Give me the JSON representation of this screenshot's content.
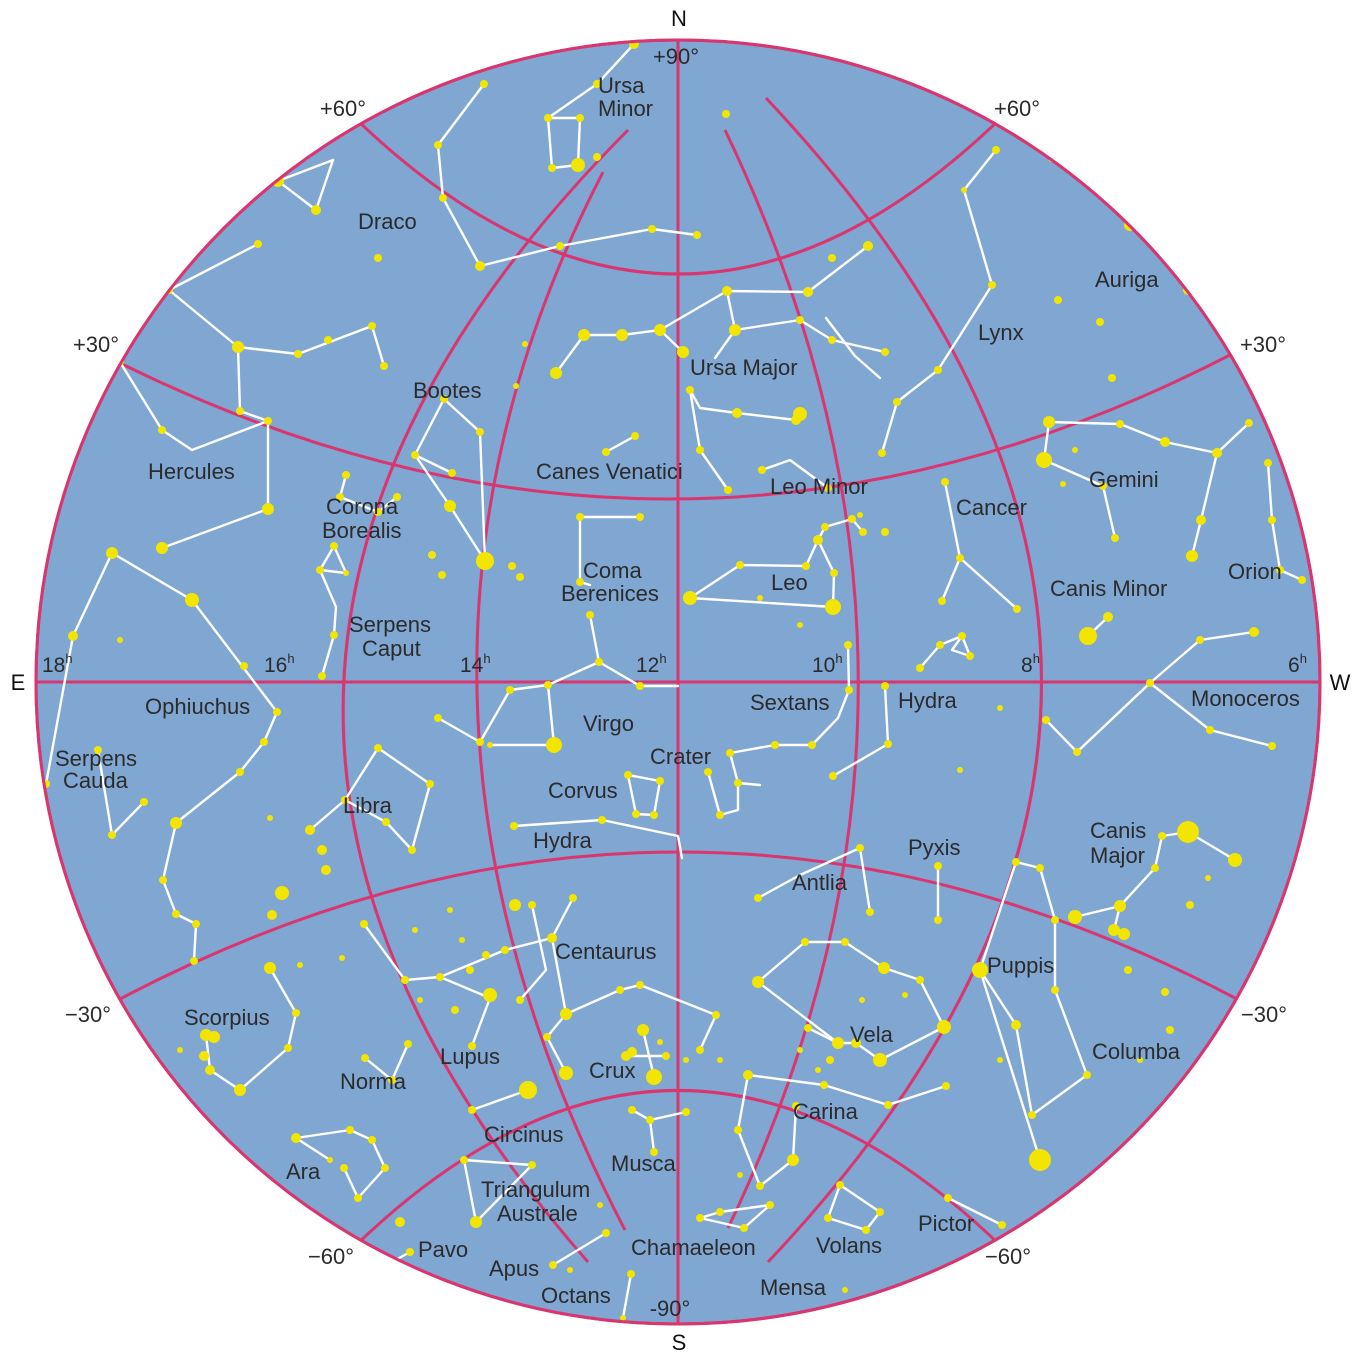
{
  "directions": {
    "north": "N",
    "south": "S",
    "east": "E",
    "west": "W"
  },
  "declination_labels": {
    "pole_north": "+90°",
    "pole_south": "-90°",
    "plus60_left": "+60°",
    "plus60_right": "+60°",
    "plus30_left": "+30°",
    "plus30_right": "+30°",
    "minus30_left": "−30°",
    "minus30_right": "−30°",
    "minus60_left": "−60°",
    "minus60_right": "−60°"
  },
  "hour_labels": [
    {
      "value": "18",
      "unit": "h"
    },
    {
      "value": "16",
      "unit": "h"
    },
    {
      "value": "14",
      "unit": "h"
    },
    {
      "value": "12",
      "unit": "h"
    },
    {
      "value": "10",
      "unit": "h"
    },
    {
      "value": "8",
      "unit": "h"
    },
    {
      "value": "6",
      "unit": "h"
    }
  ],
  "constellations": {
    "ursa_minor": [
      "Ursa",
      "Minor"
    ],
    "draco": "Draco",
    "auriga": "Auriga",
    "lynx": "Lynx",
    "ursa_major": "Ursa Major",
    "bootes": "Bootes",
    "hercules": "Hercules",
    "canes_venatici": "Canes Venatici",
    "leo_minor": "Leo Minor",
    "corona_borealis": [
      "Corona",
      "Borealis"
    ],
    "cancer": "Cancer",
    "gemini": "Gemini",
    "coma_berenices": [
      "Coma",
      "Berenices"
    ],
    "leo": "Leo",
    "canis_minor": "Canis Minor",
    "orion": "Orion",
    "serpens_caput": [
      "Serpens",
      "Caput"
    ],
    "ophiuchus": "Ophiuchus",
    "sextans": "Sextans",
    "hydra_north": "Hydra",
    "monoceros": "Monoceros",
    "virgo": "Virgo",
    "serpens_cauda": [
      "Serpens",
      "Cauda"
    ],
    "crater": "Crater",
    "libra": "Libra",
    "corvus": "Corvus",
    "canis_major": [
      "Canis",
      "Major"
    ],
    "hydra_south": "Hydra",
    "pyxis": "Pyxis",
    "antlia": "Antlia",
    "centaurus": "Centaurus",
    "puppis": "Puppis",
    "scorpius": "Scorpius",
    "vela": "Vela",
    "lupus": "Lupus",
    "columba": "Columba",
    "norma": "Norma",
    "crux": "Crux",
    "carina": "Carina",
    "circinus": "Circinus",
    "musca": "Musca",
    "ara": "Ara",
    "triangulum_australe": [
      "Triangulum",
      "Australe"
    ],
    "pictor": "Pictor",
    "pavo": "Pavo",
    "chamaeleon": "Chamaeleon",
    "volans": "Volans",
    "apus": "Apus",
    "mensa": "Mensa",
    "octans": "Octans"
  },
  "colors": {
    "sky": "#80a6d2",
    "grid": "#d9366f",
    "constellation_lines": "#ffffff",
    "stars": "#f2e600"
  }
}
